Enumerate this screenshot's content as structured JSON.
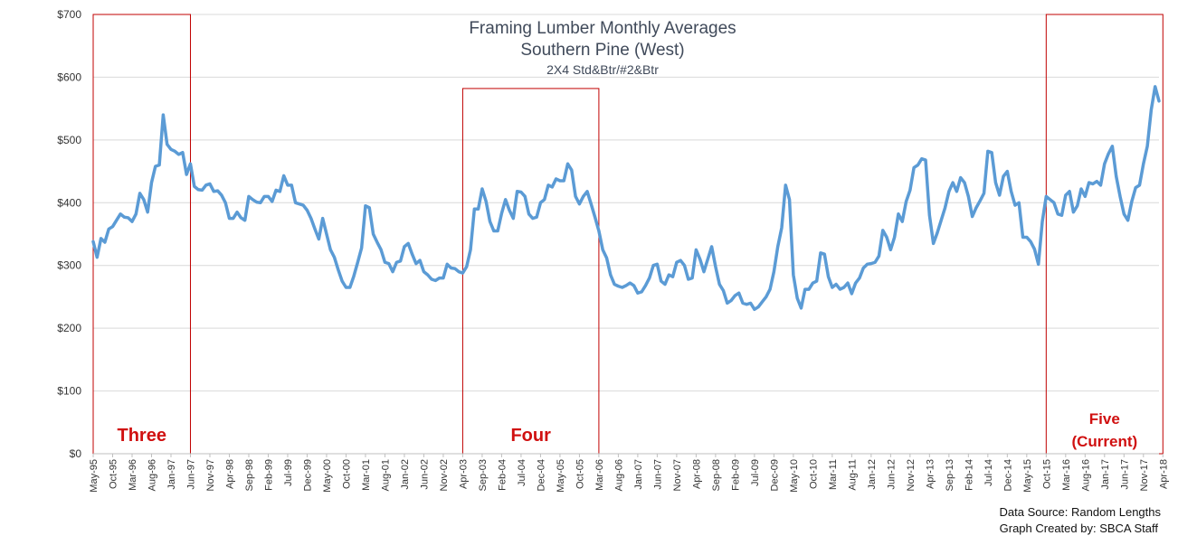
{
  "chart_data": {
    "type": "line",
    "title": "Framing Lumber Monthly Averages",
    "subtitle": "Southern Pine (West)",
    "subtitle2": "2X4 Std&Btr/#2&Btr",
    "xlabel": "",
    "ylabel": "",
    "ylim": [
      0,
      700
    ],
    "y_ticks": [
      "$0",
      "$100",
      "$200",
      "$300",
      "$400",
      "$500",
      "$600",
      "$700"
    ],
    "x_tick_labels": [
      "May-95",
      "Oct-95",
      "Mar-96",
      "Aug-96",
      "Jan-97",
      "Jun-97",
      "Nov-97",
      "Apr-98",
      "Sep-98",
      "Feb-99",
      "Jul-99",
      "Dec-99",
      "May-00",
      "Oct-00",
      "Mar-01",
      "Aug-01",
      "Jan-02",
      "Jun-02",
      "Nov-02",
      "Apr-03",
      "Sep-03",
      "Feb-04",
      "Jul-04",
      "Dec-04",
      "May-05",
      "Oct-05",
      "Mar-06",
      "Aug-06",
      "Jan-07",
      "Jun-07",
      "Nov-07",
      "Apr-08",
      "Sep-08",
      "Feb-09",
      "Jul-09",
      "Dec-09",
      "May-10",
      "Oct-10",
      "Mar-11",
      "Aug-11",
      "Jan-12",
      "Jun-12",
      "Nov-12",
      "Apr-13",
      "Sep-13",
      "Feb-14",
      "Jul-14",
      "Dec-14",
      "May-15",
      "Oct-15",
      "Mar-16",
      "Aug-16",
      "Jan-17",
      "Jun-17",
      "Nov-17",
      "Apr-18"
    ],
    "grid": true,
    "line_color": "#5b9bd5",
    "series": [
      {
        "start": "May-95",
        "values": [
          338,
          313,
          343,
          337,
          358,
          362,
          372,
          382,
          377,
          376,
          370,
          382,
          415,
          405,
          385,
          432,
          458,
          460,
          540,
          493,
          485,
          482,
          477,
          480,
          445,
          462,
          426,
          421,
          420,
          428,
          430,
          418,
          419,
          412,
          400,
          375,
          375,
          385,
          376,
          372,
          410,
          405,
          401,
          400,
          410,
          410,
          402,
          420,
          418,
          443,
          428,
          428,
          400,
          398,
          396,
          388,
          375,
          358,
          342,
          375,
          350,
          325,
          313,
          293,
          275,
          265,
          265,
          283,
          305,
          328,
          395,
          392,
          350,
          337,
          325,
          305,
          303,
          290,
          305,
          307,
          330,
          335,
          318,
          303,
          308,
          290,
          285,
          278,
          276,
          280,
          280,
          302,
          296,
          295,
          290,
          288,
          298,
          325,
          390,
          390,
          422,
          402,
          370,
          355,
          355,
          383,
          405,
          388,
          375,
          418,
          417,
          410,
          382,
          375,
          377,
          400,
          405,
          428,
          425,
          438,
          435,
          435,
          462,
          452,
          410,
          398,
          410,
          418,
          398,
          377,
          355,
          325,
          312,
          285,
          270,
          267,
          265,
          268,
          272,
          268,
          256,
          258,
          268,
          280,
          300,
          302,
          275,
          270,
          285,
          282,
          305,
          308,
          300,
          278,
          280,
          325,
          310,
          290,
          310,
          330,
          298,
          270,
          260,
          240,
          244,
          252,
          256,
          240,
          238,
          240,
          230,
          234,
          242,
          250,
          262,
          290,
          330,
          360,
          428,
          405,
          285,
          248,
          232,
          262,
          262,
          272,
          275,
          320,
          318,
          282,
          265,
          270,
          262,
          265,
          272,
          255,
          272,
          280,
          296,
          302,
          303,
          305,
          315,
          356,
          345,
          325,
          345,
          382,
          370,
          402,
          420,
          456,
          460,
          470,
          468,
          380,
          335,
          352,
          372,
          392,
          418,
          432,
          418,
          440,
          432,
          410,
          378,
          392,
          403,
          415,
          482,
          480,
          432,
          412,
          442,
          450,
          418,
          396,
          400,
          345,
          345,
          338,
          326,
          302,
          370,
          410,
          405,
          400,
          382,
          380,
          412,
          418,
          385,
          395,
          422,
          410,
          432,
          430,
          434,
          428,
          462,
          478,
          490,
          442,
          410,
          382,
          372,
          402,
          424,
          428,
          462,
          490,
          548,
          585,
          562
        ]
      }
    ],
    "eras": [
      {
        "label": "Three",
        "from": "May-95",
        "to": "Jun-97",
        "top": 700
      },
      {
        "label": "Four",
        "from": "Apr-03",
        "to": "Mar-06",
        "top": 582
      },
      {
        "label": "Five",
        "label2": "(Current)",
        "from": "Oct-15",
        "to": "Apr-18",
        "top": 700
      }
    ],
    "source_line1": "Data Source: Random Lengths",
    "source_line2": "Graph Created by: SBCA Staff"
  }
}
